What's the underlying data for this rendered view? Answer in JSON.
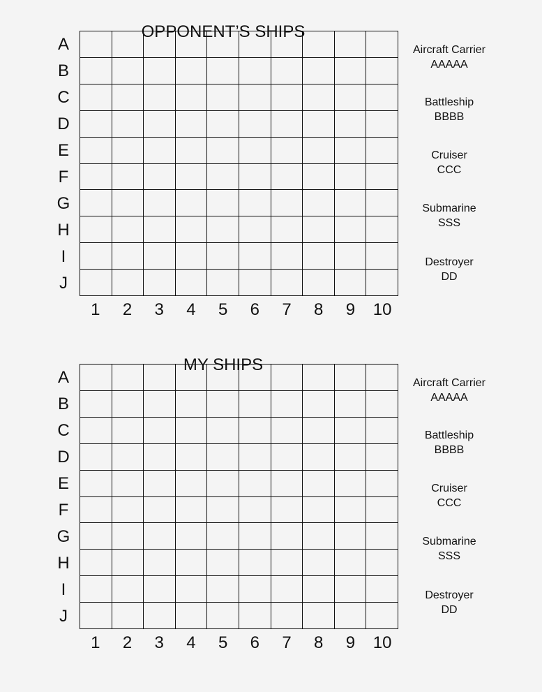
{
  "boards": [
    {
      "title": "OPPONENT’S SHIPS"
    },
    {
      "title": "MY SHIPS"
    }
  ],
  "rows": [
    "A",
    "B",
    "C",
    "D",
    "E",
    "F",
    "G",
    "H",
    "I",
    "J"
  ],
  "columns": [
    "1",
    "2",
    "3",
    "4",
    "5",
    "6",
    "7",
    "8",
    "9",
    "10"
  ],
  "ships": [
    {
      "name": "Aircraft Carrier",
      "code": "AAAAA"
    },
    {
      "name": "Battleship",
      "code": "BBBB"
    },
    {
      "name": "Cruiser",
      "code": "CCC"
    },
    {
      "name": "Submarine",
      "code": "SSS"
    },
    {
      "name": "Destroyer",
      "code": "DD"
    }
  ]
}
